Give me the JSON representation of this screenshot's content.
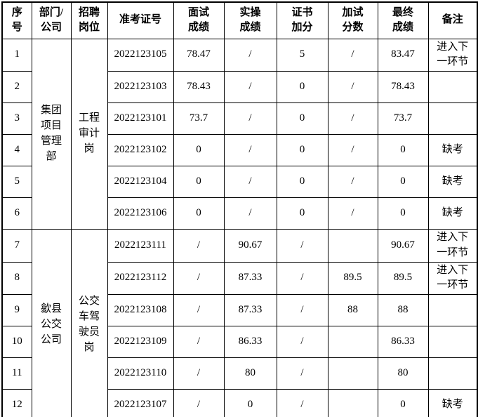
{
  "table": {
    "headers": [
      "序\n号",
      "部门/\n公司",
      "招聘\n岗位",
      "准考证号",
      "面试\n成绩",
      "实操\n成绩",
      "证书\n加分",
      "加试\n分数",
      "最终\n成绩",
      "备注"
    ],
    "groups": [
      {
        "department": "集团\n项目\n管理\n部",
        "position": "工程\n审计\n岗"
      },
      {
        "department": "歙县\n公交\n公司",
        "position": "公交\n车驾\n驶员\n岗"
      }
    ],
    "rows": [
      {
        "no": "1",
        "ticket": "2022123105",
        "interview": "78.47",
        "practical": "/",
        "cert": "5",
        "extra": "/",
        "final": "83.47",
        "remark": "进入下\n一环节"
      },
      {
        "no": "2",
        "ticket": "2022123103",
        "interview": "78.43",
        "practical": "/",
        "cert": "0",
        "extra": "/",
        "final": "78.43",
        "remark": ""
      },
      {
        "no": "3",
        "ticket": "2022123101",
        "interview": "73.7",
        "practical": "/",
        "cert": "0",
        "extra": "/",
        "final": "73.7",
        "remark": ""
      },
      {
        "no": "4",
        "ticket": "2022123102",
        "interview": "0",
        "practical": "/",
        "cert": "0",
        "extra": "/",
        "final": "0",
        "remark": "缺考"
      },
      {
        "no": "5",
        "ticket": "2022123104",
        "interview": "0",
        "practical": "/",
        "cert": "0",
        "extra": "/",
        "final": "0",
        "remark": "缺考"
      },
      {
        "no": "6",
        "ticket": "2022123106",
        "interview": "0",
        "practical": "/",
        "cert": "0",
        "extra": "/",
        "final": "0",
        "remark": "缺考"
      },
      {
        "no": "7",
        "ticket": "2022123111",
        "interview": "/",
        "practical": "90.67",
        "cert": "/",
        "extra": "",
        "final": "90.67",
        "remark": "进入下\n一环节"
      },
      {
        "no": "8",
        "ticket": "2022123112",
        "interview": "/",
        "practical": "87.33",
        "cert": "/",
        "extra": "89.5",
        "final": "89.5",
        "remark": "进入下\n一环节"
      },
      {
        "no": "9",
        "ticket": "2022123108",
        "interview": "/",
        "practical": "87.33",
        "cert": "/",
        "extra": "88",
        "final": "88",
        "remark": ""
      },
      {
        "no": "10",
        "ticket": "2022123109",
        "interview": "/",
        "practical": "86.33",
        "cert": "/",
        "extra": "",
        "final": "86.33",
        "remark": ""
      },
      {
        "no": "11",
        "ticket": "2022123110",
        "interview": "/",
        "practical": "80",
        "cert": "/",
        "extra": "",
        "final": "80",
        "remark": ""
      },
      {
        "no": "12",
        "ticket": "2022123107",
        "interview": "/",
        "practical": "0",
        "cert": "/",
        "extra": "",
        "final": "0",
        "remark": "缺考"
      }
    ]
  }
}
